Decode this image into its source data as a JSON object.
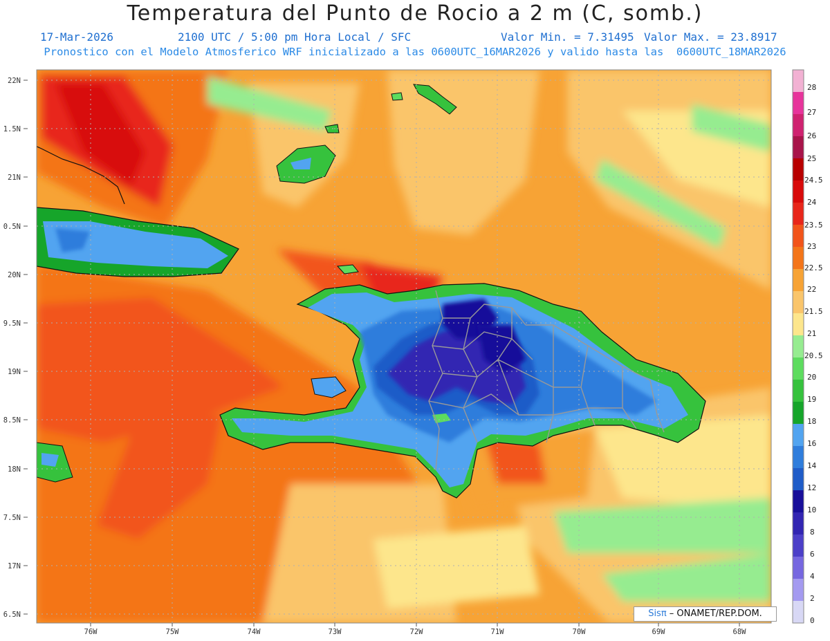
{
  "header": {
    "title": "Temperatura del Punto de Rocio a 2 m (C, somb.)",
    "date": "17-Mar-2026",
    "time": "2100 UTC / 5:00 pm Hora Local / SFC",
    "vmin": "Valor Min. = 7.31495",
    "vmax": "Valor Max. = 23.8917",
    "model_line": "Pronostico con el Modelo Atmosferico WRF inicializado a las 0600UTC_16MAR2026 y valido hasta las  0600UTC_18MAR2026"
  },
  "map": {
    "lat_labels": [
      "22N",
      "1.5N",
      "21N",
      "0.5N",
      "20N",
      "9.5N",
      "19N",
      "8.5N",
      "18N",
      "7.5N",
      "17N",
      "6.5N"
    ],
    "lon_labels": [
      "76W",
      "75W",
      "74W",
      "73W",
      "72W",
      "71W",
      "70W",
      "69W",
      "68W"
    ],
    "lat_range": [
      16.5,
      22.0
    ],
    "lon_range": [
      -76.6,
      -67.6
    ]
  },
  "colorbar": {
    "labels": [
      "28",
      "27",
      "26",
      "25",
      "24.5",
      "24",
      "23.5",
      "23",
      "22.5",
      "22",
      "21.5",
      "21",
      "20.5",
      "20",
      "19",
      "18",
      "16",
      "14",
      "12",
      "10",
      "8",
      "6",
      "4",
      "2",
      "0"
    ],
    "colors": [
      "#f2b1d3",
      "#e7349b",
      "#cf2270",
      "#a8144a",
      "#b80000",
      "#d80a0a",
      "#e8261a",
      "#f2541a",
      "#f47519",
      "#f7a335",
      "#fac56b",
      "#fde68c",
      "#96ec90",
      "#5ddc5e",
      "#36c23d",
      "#16a52a",
      "#52a4f0",
      "#2f7ddc",
      "#1f5cc8",
      "#180f9a",
      "#3225b2",
      "#4c3fc8",
      "#7667e0",
      "#a49af0",
      "#d8d8f5"
    ]
  },
  "watermark": {
    "brand_left": "Sis",
    "brand_pi": "π",
    "agency": " – ONAMET/REP.DOM."
  }
}
